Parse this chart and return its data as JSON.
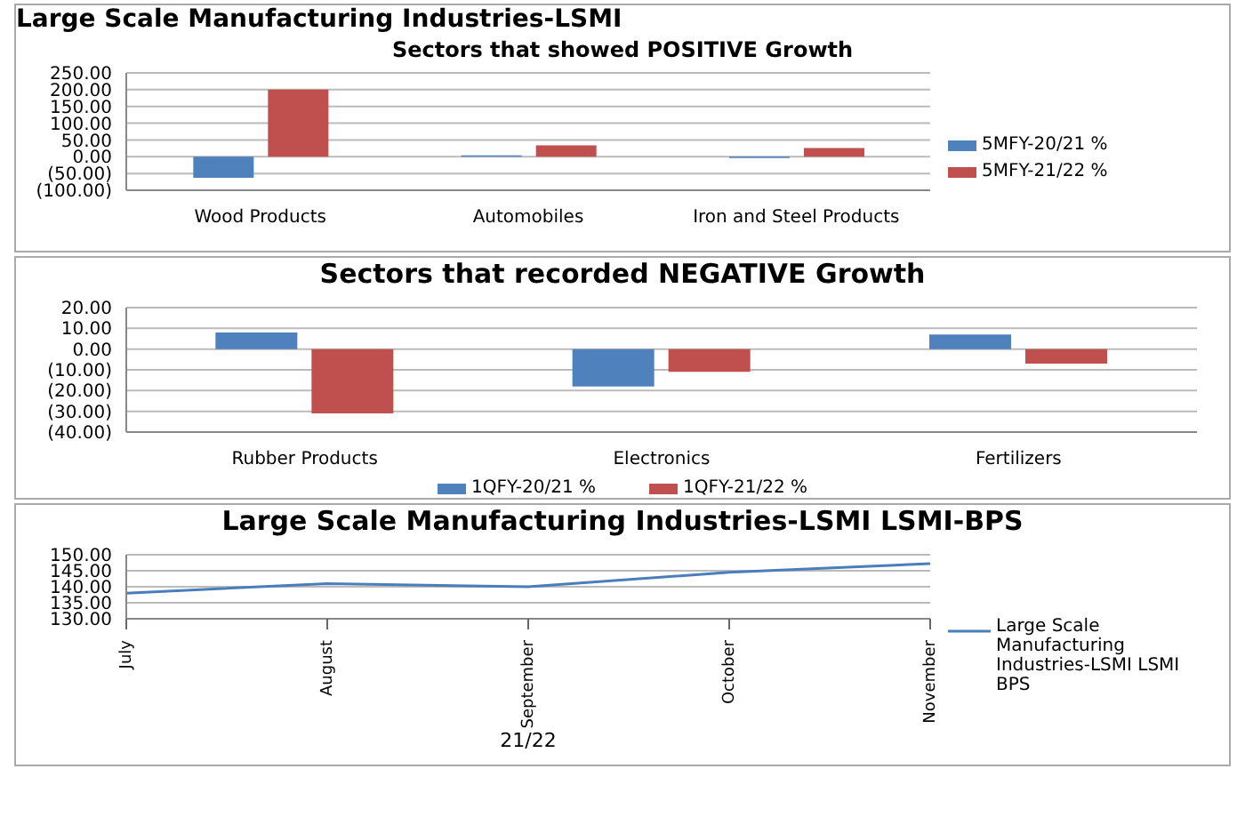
{
  "chart_data": [
    {
      "type": "bar",
      "title": "Sectors that showed POSITIVE Growth",
      "annotations": [
        "Large Scale Manufacturing Industries-LSMI"
      ],
      "categories": [
        "Wood Products",
        "Automobiles",
        "Iron and Steel Products"
      ],
      "series": [
        {
          "name": "5MFY-20/21 %",
          "color": "#4f81bd",
          "values": [
            -63,
            4,
            -4
          ]
        },
        {
          "name": "5MFY-21/22 %",
          "color": "#c0504d",
          "values": [
            200,
            34,
            26
          ]
        }
      ],
      "ylim": [
        -100,
        250
      ],
      "yticks": [
        {
          "value": -100,
          "label": "(100.00)"
        },
        {
          "value": -50,
          "label": "(50.00)"
        },
        {
          "value": 0,
          "label": "0.00"
        },
        {
          "value": 50,
          "label": "50.00"
        },
        {
          "value": 100,
          "label": "100.00"
        },
        {
          "value": 150,
          "label": "150.00"
        },
        {
          "value": 200,
          "label": "200.00"
        },
        {
          "value": 250,
          "label": "250.00"
        }
      ],
      "grid": "y",
      "legend": "right"
    },
    {
      "type": "bar",
      "title": "Sectors that recorded NEGATIVE Growth",
      "categories": [
        "Rubber Products",
        "Electronics",
        "Fertilizers"
      ],
      "series": [
        {
          "name": "1QFY-20/21 %",
          "color": "#4f81bd",
          "values": [
            8,
            -18,
            7
          ]
        },
        {
          "name": "1QFY-21/22 %",
          "color": "#c0504d",
          "values": [
            -31,
            -11,
            -7
          ]
        }
      ],
      "ylim": [
        -40,
        20
      ],
      "yticks": [
        {
          "value": -40,
          "label": "(40.00)"
        },
        {
          "value": -30,
          "label": "(30.00)"
        },
        {
          "value": -20,
          "label": "(20.00)"
        },
        {
          "value": -10,
          "label": "(10.00)"
        },
        {
          "value": 0,
          "label": "0.00"
        },
        {
          "value": 10,
          "label": "10.00"
        },
        {
          "value": 20,
          "label": "20.00"
        }
      ],
      "grid": "y",
      "legend": "bottom"
    },
    {
      "type": "line",
      "title": "Large Scale Manufacturing Industries-LSMI LSMI-BPS",
      "xlabel": "21/22",
      "categories": [
        "July",
        "August",
        "September",
        "October",
        "November"
      ],
      "series": [
        {
          "name": "Large Scale Manufacturing Industries-LSMI LSMI BPS",
          "color": "#4a7ebb",
          "values": [
            138,
            141,
            140,
            144.5,
            147.2
          ]
        }
      ],
      "ylim": [
        130,
        150
      ],
      "yticks": [
        {
          "value": 130,
          "label": "130.00"
        },
        {
          "value": 135,
          "label": "135.00"
        },
        {
          "value": 140,
          "label": "140.00"
        },
        {
          "value": 145,
          "label": "145.00"
        },
        {
          "value": 150,
          "label": "150.00"
        }
      ],
      "grid": "y",
      "legend": "right",
      "marker": "none",
      "line_style": "solid"
    }
  ]
}
